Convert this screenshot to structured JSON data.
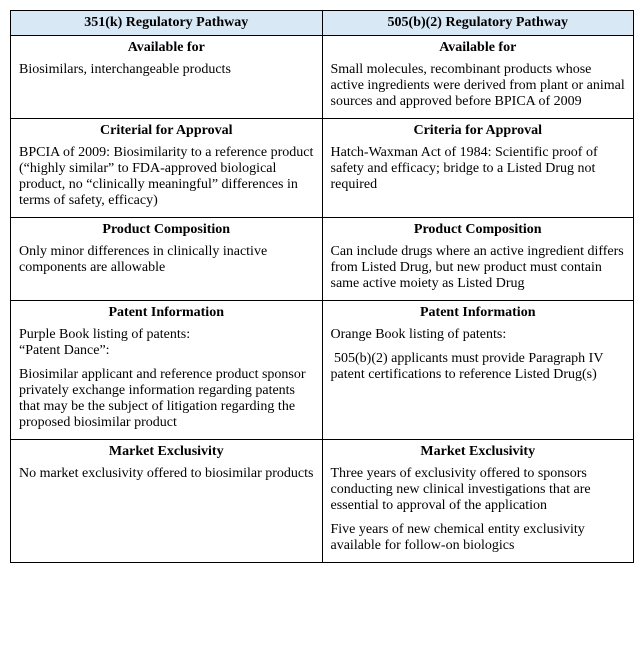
{
  "table": {
    "header_bg": "#d9e8f5",
    "border_color": "#000000",
    "columns": [
      {
        "header": "351(k) Regulatory Pathway"
      },
      {
        "header": "505(b)(2) Regulatory Pathway"
      }
    ],
    "rows": [
      {
        "left": {
          "title": "Available for",
          "paras": [
            "Biosimilars, interchangeable products"
          ]
        },
        "right": {
          "title": "Available for",
          "paras": [
            "Small molecules, recombinant products whose active ingredients were derived from plant or animal sources and approved before BPICA of 2009"
          ]
        }
      },
      {
        "left": {
          "title": "Criterial for Approval",
          "paras": [
            "BPCIA of 2009: Biosimilarity to a reference product (“highly similar” to FDA-approved biological product, no “clinically meaningful” differences in terms of safety, efficacy)"
          ]
        },
        "right": {
          "title": "Criteria for Approval",
          "paras": [
            "Hatch-Waxman Act of 1984: Scientific proof of safety and efficacy; bridge to a Listed Drug not required"
          ]
        }
      },
      {
        "left": {
          "title": "Product Composition",
          "paras": [
            "Only minor differences in clinically inactive components are allowable"
          ]
        },
        "right": {
          "title": "Product Composition",
          "paras": [
            "Can include drugs where an active ingredient differs from Listed Drug, but new product must contain same active moiety as Listed Drug"
          ]
        }
      },
      {
        "left": {
          "title": "Patent Information",
          "paras": [
            "Purple Book listing of patents:\n“Patent Dance”:",
            "Biosimilar applicant and reference product sponsor privately exchange information regarding patents that may be the subject of litigation regarding the proposed biosimilar product"
          ]
        },
        "right": {
          "title": "Patent Information",
          "paras": [
            "Orange Book listing of patents:",
            " 505(b)(2) applicants must provide Paragraph IV patent certifications to reference Listed Drug(s)"
          ]
        }
      },
      {
        "left": {
          "title": "Market Exclusivity",
          "paras": [
            "No market exclusivity offered to biosimilar products"
          ]
        },
        "right": {
          "title": "Market Exclusivity",
          "paras": [
            "Three years of exclusivity offered to sponsors conducting new clinical investigations that are essential to approval of the application",
            "Five years of new chemical entity exclusivity available for follow-on biologics"
          ]
        }
      }
    ]
  }
}
